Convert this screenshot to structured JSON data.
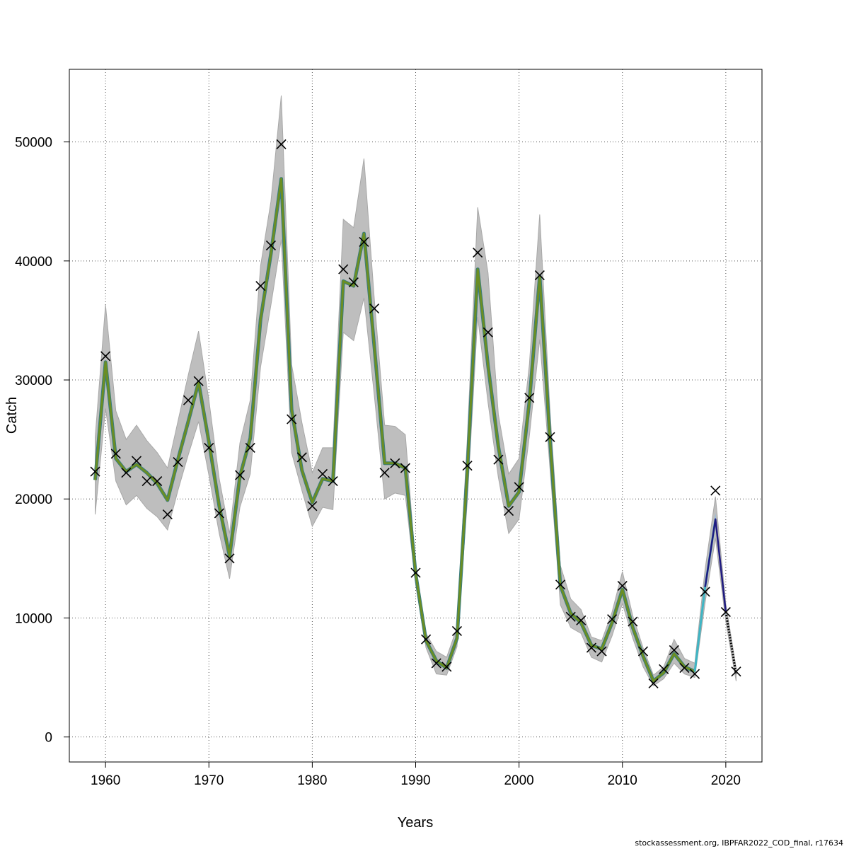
{
  "footer": "stockassessment.org, IBPFAR2022_COD_final, r17634",
  "chart_data": {
    "type": "line",
    "xlabel": "Years",
    "ylabel": "Catch",
    "xlim": [
      1956.5,
      2023.5
    ],
    "ylim": [
      -2100,
      56100
    ],
    "xticks": [
      1960,
      1970,
      1980,
      1990,
      2000,
      2010,
      2020
    ],
    "yticks": [
      0,
      10000,
      20000,
      30000,
      40000,
      50000
    ],
    "grid": true,
    "colors": {
      "band": "#bebebe",
      "band_edge": "#a8a8a8",
      "fit_line": "#6b8e23",
      "fit_edge": "#3a7d7d",
      "recent_light": "#8fbce0",
      "recent_dark": "#1f1a80",
      "observed_marker": "#000000"
    },
    "years": [
      1959,
      1960,
      1961,
      1962,
      1963,
      1964,
      1965,
      1966,
      1967,
      1968,
      1969,
      1970,
      1971,
      1972,
      1973,
      1974,
      1975,
      1976,
      1977,
      1978,
      1979,
      1980,
      1981,
      1982,
      1983,
      1984,
      1985,
      1986,
      1987,
      1988,
      1989,
      1990,
      1991,
      1992,
      1993,
      1994,
      1995,
      1996,
      1997,
      1998,
      1999,
      2000,
      2001,
      2002,
      2003,
      2004,
      2005,
      2006,
      2007,
      2008,
      2009,
      2010,
      2011,
      2012,
      2013,
      2014,
      2015,
      2016,
      2017,
      2018,
      2019,
      2020,
      2021
    ],
    "series": [
      {
        "name": "",
        "role": "fitted",
        "values": [
          21600,
          31500,
          23400,
          22300,
          22900,
          22200,
          21300,
          19900,
          23300,
          26500,
          29800,
          24800,
          19400,
          15200,
          21900,
          25100,
          35100,
          40600,
          46900,
          27500,
          22400,
          19700,
          21700,
          21500,
          38300,
          37900,
          42300,
          32800,
          23000,
          23000,
          22600,
          13700,
          8100,
          6400,
          5800,
          8300,
          22400,
          39300,
          31200,
          24400,
          19400,
          20600,
          28200,
          38700,
          24900,
          12700,
          10400,
          9600,
          7700,
          7400,
          9600,
          12400,
          9200,
          6800,
          4700,
          5400,
          7000,
          5900,
          5500,
          12600,
          18300,
          10500,
          5300
        ],
        "lower": [
          18700,
          27600,
          21500,
          19500,
          20300,
          19200,
          18500,
          17400,
          20700,
          23700,
          26500,
          22000,
          17100,
          13300,
          19300,
          22100,
          31100,
          36300,
          41800,
          23900,
          20700,
          17700,
          19300,
          19100,
          34000,
          33300,
          36900,
          28700,
          20000,
          20500,
          20300,
          12800,
          7500,
          5300,
          5200,
          7600,
          19900,
          35300,
          28100,
          21800,
          17100,
          18300,
          25300,
          33400,
          22500,
          11100,
          9200,
          8700,
          6700,
          6300,
          8500,
          11200,
          8300,
          5900,
          4300,
          4900,
          6200,
          5300,
          5000,
          11300,
          16700,
          9700,
          4700
        ],
        "upper": [
          25200,
          36300,
          27400,
          25000,
          26200,
          24900,
          23900,
          22600,
          26500,
          30400,
          34100,
          28300,
          21700,
          17100,
          24700,
          28300,
          39600,
          45000,
          53900,
          31300,
          26400,
          22200,
          24300,
          24300,
          43500,
          42800,
          48600,
          36800,
          26200,
          26100,
          25400,
          14400,
          8700,
          7200,
          6700,
          9200,
          25100,
          44500,
          39000,
          27100,
          22100,
          23400,
          31300,
          43900,
          27300,
          14400,
          11600,
          10700,
          8400,
          8100,
          10500,
          13900,
          10200,
          7500,
          5200,
          5900,
          8200,
          6600,
          6200,
          14100,
          20200,
          11200,
          5800
        ]
      },
      {
        "name": "",
        "role": "observed",
        "marker": "x",
        "values": [
          22300,
          32000,
          23800,
          22200,
          23200,
          21500,
          21500,
          18700,
          23100,
          28300,
          29900,
          24300,
          18800,
          15000,
          22000,
          24300,
          37900,
          41300,
          49800,
          26700,
          23500,
          19400,
          22100,
          21500,
          39300,
          38200,
          41600,
          36000,
          22200,
          23000,
          22600,
          13800,
          8200,
          6200,
          5900,
          8900,
          22800,
          40700,
          34000,
          23300,
          19000,
          21000,
          28500,
          38800,
          25200,
          12800,
          10100,
          9800,
          7500,
          7200,
          9900,
          12700,
          9700,
          7200,
          4500,
          5700,
          7300,
          5800,
          5300,
          12200,
          20700,
          10500,
          5500
        ]
      }
    ]
  }
}
